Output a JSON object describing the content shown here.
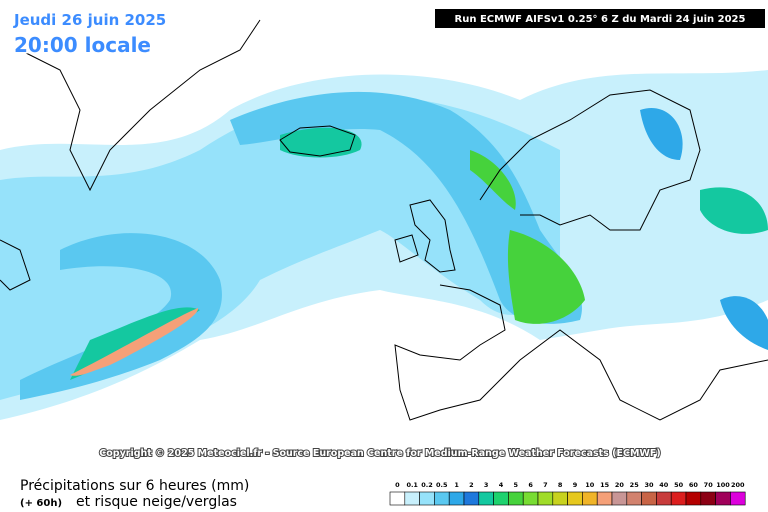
{
  "header": {
    "date": "Jeudi 26 juin 2025",
    "time": "20:00 locale",
    "run": "Run ECMWF AIFSv1 0.25° 6 Z du Mardi 24 juin 2025"
  },
  "copyright": "Copyright © 2025 Meteociel.fr - Source European Centre for Medium-Range Weather Forecasts (ECMWF)",
  "footer": {
    "title": "Précipitations sur 6 heures (mm)",
    "lead": "(+ 60h)",
    "subtitle": "et risque neige/verglas"
  },
  "legend": {
    "stops": [
      {
        "label": "0",
        "color": "#ffffff"
      },
      {
        "label": "0.1",
        "color": "#c8f0fc"
      },
      {
        "label": "0.2",
        "color": "#96e2fa"
      },
      {
        "label": "0.5",
        "color": "#5ac8f0"
      },
      {
        "label": "1",
        "color": "#2ea8e8"
      },
      {
        "label": "2",
        "color": "#1e78dc"
      },
      {
        "label": "3",
        "color": "#14c8a0"
      },
      {
        "label": "4",
        "color": "#1ed26e"
      },
      {
        "label": "5",
        "color": "#46d23c"
      },
      {
        "label": "6",
        "color": "#78dc32"
      },
      {
        "label": "7",
        "color": "#a0dc28"
      },
      {
        "label": "8",
        "color": "#c8d21e"
      },
      {
        "label": "9",
        "color": "#e6c81e"
      },
      {
        "label": "10",
        "color": "#f0b428"
      },
      {
        "label": "15",
        "color": "#f5a078"
      },
      {
        "label": "20",
        "color": "#c89696"
      },
      {
        "label": "25",
        "color": "#d2826e"
      },
      {
        "label": "30",
        "color": "#c86446"
      },
      {
        "label": "40",
        "color": "#c83c3c"
      },
      {
        "label": "50",
        "color": "#dc1e1e"
      },
      {
        "label": "60",
        "color": "#b40000"
      },
      {
        "label": "70",
        "color": "#8c0014"
      },
      {
        "label": "100",
        "color": "#a0005a"
      },
      {
        "label": "200",
        "color": "#dc00dc"
      }
    ]
  }
}
